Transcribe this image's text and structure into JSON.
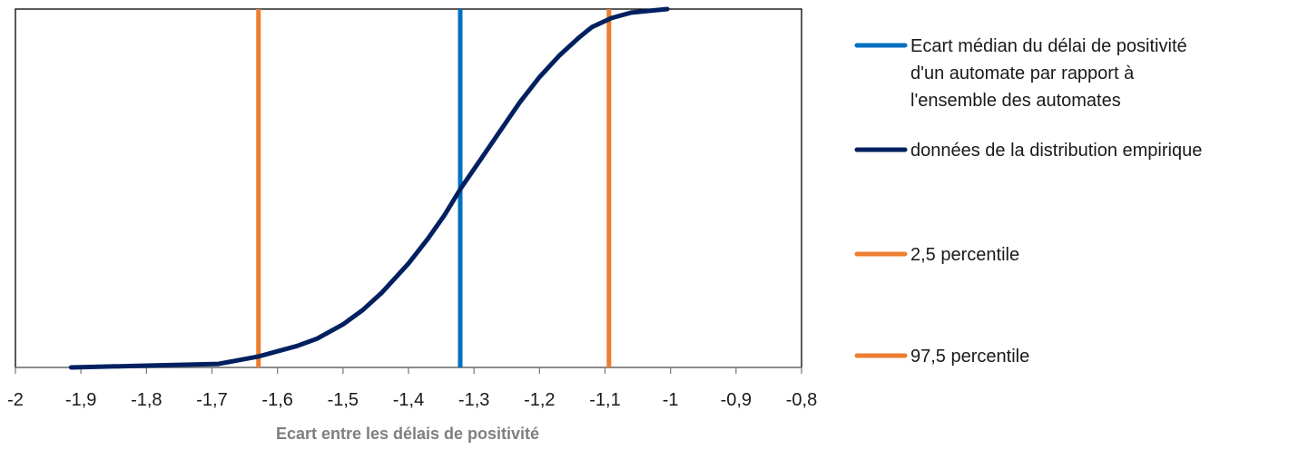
{
  "chart_data": {
    "type": "line",
    "xlabel": "Ecart entre les délais de positivité",
    "ylabel": "",
    "xlim": [
      -2,
      -0.8
    ],
    "ylim": [
      0,
      1
    ],
    "x_ticks": [
      "-2",
      "-1,9",
      "-1,8",
      "-1,7",
      "-1,6",
      "-1,5",
      "-1,4",
      "-1,3",
      "-1,2",
      "-1,1",
      "-1",
      "-0,9",
      "-0,8"
    ],
    "grid": false,
    "legend_position": "right",
    "series": [
      {
        "name": "Ecart médian du délai de positivité d'un automate par rapport à l'ensemble des automates",
        "type": "vline",
        "x": -1.321,
        "color": "#0070c0"
      },
      {
        "name": "données de la distribution empirique",
        "type": "line",
        "color": "#002060",
        "points": [
          [
            -1.915,
            0.0
          ],
          [
            -1.8,
            0.005
          ],
          [
            -1.69,
            0.01
          ],
          [
            -1.66,
            0.02
          ],
          [
            -1.63,
            0.03
          ],
          [
            -1.6,
            0.045
          ],
          [
            -1.57,
            0.06
          ],
          [
            -1.54,
            0.08
          ],
          [
            -1.5,
            0.12
          ],
          [
            -1.47,
            0.16
          ],
          [
            -1.44,
            0.21
          ],
          [
            -1.4,
            0.29
          ],
          [
            -1.37,
            0.36
          ],
          [
            -1.345,
            0.425
          ],
          [
            -1.32,
            0.5
          ],
          [
            -1.29,
            0.58
          ],
          [
            -1.26,
            0.66
          ],
          [
            -1.23,
            0.74
          ],
          [
            -1.2,
            0.81
          ],
          [
            -1.17,
            0.87
          ],
          [
            -1.14,
            0.92
          ],
          [
            -1.12,
            0.95
          ],
          [
            -1.09,
            0.975
          ],
          [
            -1.06,
            0.99
          ],
          [
            -1.005,
            1.0
          ]
        ]
      },
      {
        "name": "2,5 percentile",
        "type": "vline",
        "x": -1.629,
        "color": "#ed7d31"
      },
      {
        "name": "97,5 percentile",
        "type": "vline",
        "x": -1.094,
        "color": "#ed7d31"
      }
    ]
  }
}
